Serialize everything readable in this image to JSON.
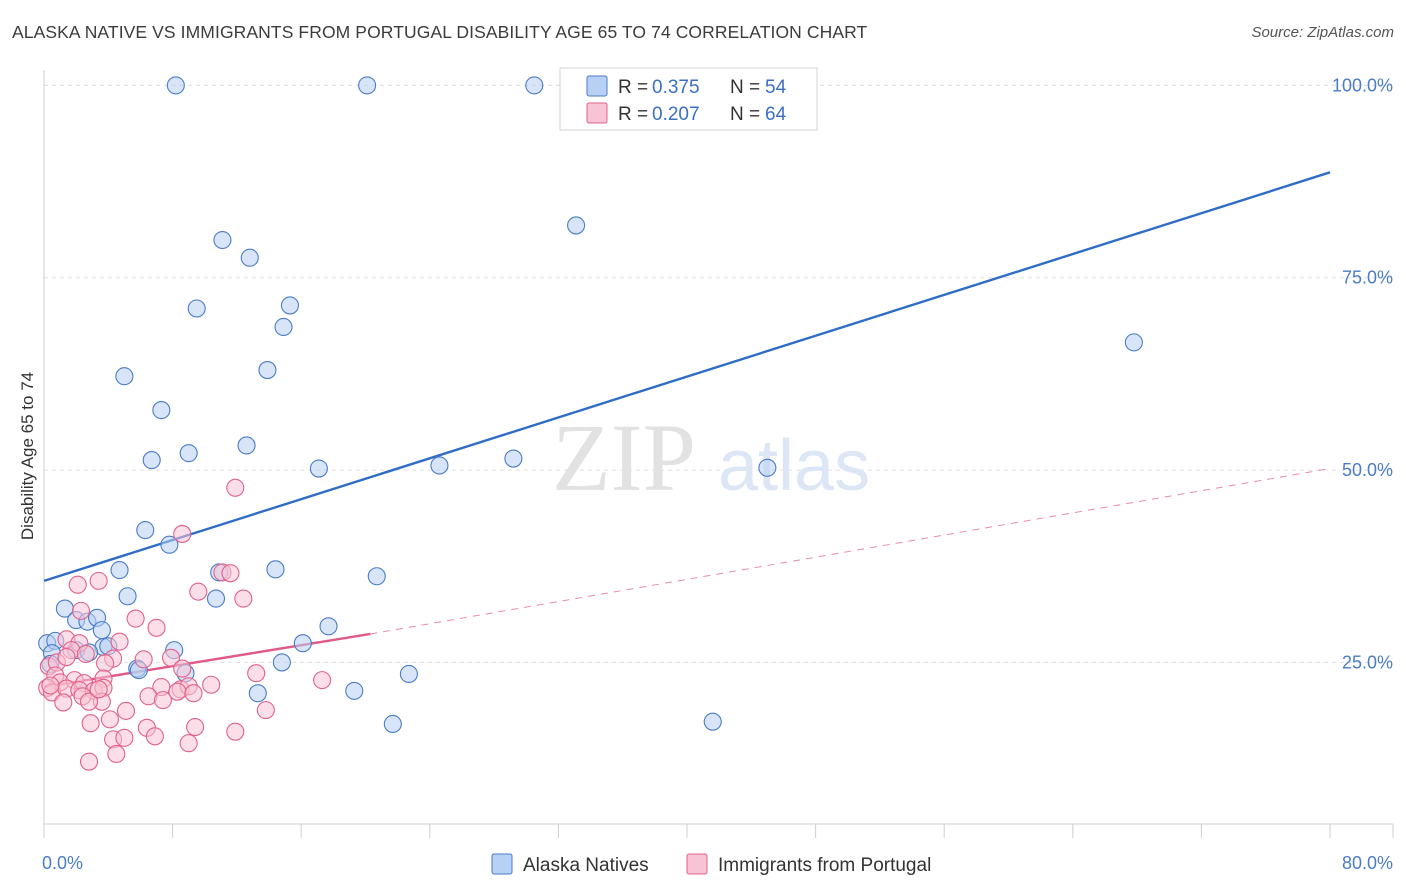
{
  "title": "ALASKA NATIVE VS IMMIGRANTS FROM PORTUGAL DISABILITY AGE 65 TO 74 CORRELATION CHART",
  "source": "Source: ZipAtlas.com",
  "watermark": {
    "zip": "ZIP",
    "atlas": "atlas"
  },
  "colors": {
    "blue": "#4a7cc7",
    "blue_fill": "#b8d0f3",
    "blue_line": "#2f6dc6",
    "pink": "#e0628c",
    "pink_fill": "#f8c3d4",
    "pink_line": "#e05a87",
    "grid": "#e0e0e0"
  },
  "legend": {
    "rows": [
      {
        "r_label": "R =",
        "r_value": "0.375",
        "n_label": "N =",
        "n_value": "54"
      },
      {
        "r_label": "R =",
        "r_value": "0.207",
        "n_label": "N =",
        "n_value": "64"
      }
    ]
  },
  "bottom_legend": [
    "Alaska Natives",
    "Immigrants from Portugal"
  ],
  "chart_data": {
    "type": "scatter",
    "ylabel": "Disability Age 65 to 74",
    "xlim": [
      0,
      80
    ],
    "ylim": [
      4,
      102
    ],
    "x_tick_labels": [
      "0.0%",
      "80.0%"
    ],
    "y_ticks": [
      25,
      50,
      75,
      100
    ],
    "y_tick_labels": [
      "25.0%",
      "50.0%",
      "75.0%",
      "100.0%"
    ],
    "grid": true,
    "series": [
      {
        "name": "Alaska Natives",
        "color": "blue",
        "points": [
          [
            8.2,
            100
          ],
          [
            20.1,
            100
          ],
          [
            30.5,
            100
          ],
          [
            44.5,
            100
          ],
          [
            33.1,
            81.8
          ],
          [
            11.1,
            79.9
          ],
          [
            12.8,
            77.6
          ],
          [
            9.5,
            71.0
          ],
          [
            15.3,
            71.4
          ],
          [
            14.9,
            68.6
          ],
          [
            67.8,
            66.6
          ],
          [
            5.0,
            62.2
          ],
          [
            13.9,
            63.0
          ],
          [
            7.3,
            57.8
          ],
          [
            12.6,
            53.2
          ],
          [
            9.0,
            52.2
          ],
          [
            6.7,
            51.3
          ],
          [
            29.2,
            51.5
          ],
          [
            17.1,
            50.2
          ],
          [
            24.6,
            50.6
          ],
          [
            45.0,
            50.3
          ],
          [
            6.3,
            42.2
          ],
          [
            7.8,
            40.3
          ],
          [
            4.7,
            37.0
          ],
          [
            10.9,
            36.7
          ],
          [
            14.4,
            37.1
          ],
          [
            20.7,
            36.2
          ],
          [
            5.2,
            33.6
          ],
          [
            10.7,
            33.3
          ],
          [
            1.3,
            32.0
          ],
          [
            2.0,
            30.5
          ],
          [
            2.7,
            30.3
          ],
          [
            3.3,
            30.8
          ],
          [
            3.6,
            29.2
          ],
          [
            17.7,
            29.7
          ],
          [
            0.2,
            27.5
          ],
          [
            0.7,
            27.8
          ],
          [
            3.7,
            27.0
          ],
          [
            4.0,
            27.1
          ],
          [
            2.0,
            26.6
          ],
          [
            0.5,
            26.2
          ],
          [
            2.8,
            26.3
          ],
          [
            8.1,
            26.6
          ],
          [
            16.1,
            27.5
          ],
          [
            14.8,
            25.0
          ],
          [
            0.4,
            24.8
          ],
          [
            5.8,
            24.2
          ],
          [
            5.9,
            24.0
          ],
          [
            8.8,
            23.6
          ],
          [
            22.7,
            23.5
          ],
          [
            13.3,
            21.0
          ],
          [
            19.3,
            21.3
          ],
          [
            21.7,
            17.0
          ],
          [
            41.6,
            17.3
          ]
        ],
        "trend": {
          "x": [
            0,
            80
          ],
          "y": [
            35.6,
            88.7
          ],
          "style": "solid"
        }
      },
      {
        "name": "Immigrants from Portugal",
        "color": "pink",
        "points": [
          [
            11.9,
            47.7
          ],
          [
            8.6,
            41.7
          ],
          [
            3.4,
            35.6
          ],
          [
            2.1,
            35.1
          ],
          [
            9.6,
            34.2
          ],
          [
            11.1,
            36.7
          ],
          [
            11.6,
            36.6
          ],
          [
            12.4,
            33.3
          ],
          [
            2.3,
            31.7
          ],
          [
            5.7,
            30.7
          ],
          [
            7.0,
            29.5
          ],
          [
            1.4,
            28.0
          ],
          [
            2.2,
            27.5
          ],
          [
            4.7,
            27.7
          ],
          [
            1.7,
            26.6
          ],
          [
            2.6,
            26.1
          ],
          [
            0.3,
            24.5
          ],
          [
            0.8,
            25.0
          ],
          [
            1.4,
            25.7
          ],
          [
            4.3,
            25.5
          ],
          [
            6.2,
            25.4
          ],
          [
            7.9,
            25.6
          ],
          [
            3.8,
            24.9
          ],
          [
            8.6,
            24.2
          ],
          [
            0.7,
            23.3
          ],
          [
            1.0,
            22.4
          ],
          [
            1.9,
            22.7
          ],
          [
            2.5,
            22.3
          ],
          [
            3.7,
            22.9
          ],
          [
            8.5,
            21.5
          ],
          [
            9.0,
            21.9
          ],
          [
            10.4,
            22.1
          ],
          [
            13.2,
            23.6
          ],
          [
            17.3,
            22.7
          ],
          [
            0.2,
            21.7
          ],
          [
            0.5,
            21.1
          ],
          [
            1.4,
            21.6
          ],
          [
            2.2,
            21.4
          ],
          [
            3.1,
            21.3
          ],
          [
            3.7,
            21.7
          ],
          [
            7.3,
            21.8
          ],
          [
            8.3,
            21.2
          ],
          [
            9.3,
            21.0
          ],
          [
            2.4,
            20.6
          ],
          [
            3.6,
            19.9
          ],
          [
            6.5,
            20.6
          ],
          [
            7.4,
            20.1
          ],
          [
            1.2,
            19.8
          ],
          [
            2.8,
            19.9
          ],
          [
            5.1,
            18.7
          ],
          [
            13.8,
            18.8
          ],
          [
            2.9,
            17.1
          ],
          [
            4.1,
            17.6
          ],
          [
            6.4,
            16.5
          ],
          [
            9.4,
            16.6
          ],
          [
            11.9,
            16.0
          ],
          [
            4.3,
            15.0
          ],
          [
            5.0,
            15.2
          ],
          [
            6.9,
            15.4
          ],
          [
            9.0,
            14.5
          ],
          [
            4.5,
            13.1
          ],
          [
            2.8,
            12.1
          ],
          [
            0.4,
            22.0
          ],
          [
            3.4,
            21.5
          ]
        ],
        "trend": {
          "x": [
            0,
            20.3
          ],
          "y": [
            21.8,
            28.7
          ],
          "style": "solid"
        },
        "trend_extension": {
          "x": [
            20.3,
            80
          ],
          "y": [
            28.7,
            50.2
          ],
          "style": "dashed"
        }
      }
    ]
  }
}
